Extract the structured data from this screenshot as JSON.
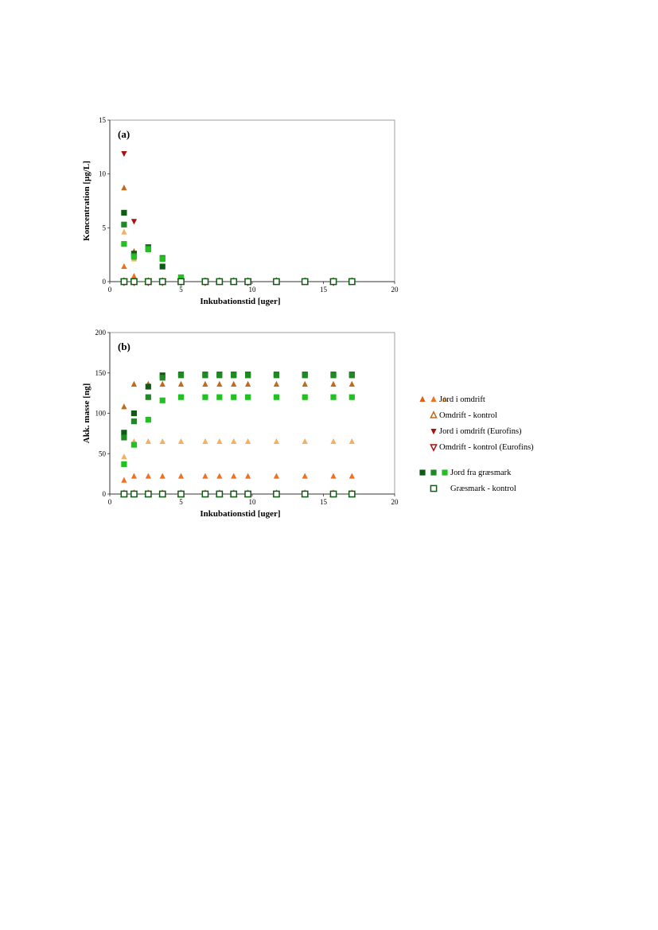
{
  "chart_data": [
    {
      "type": "scatter",
      "panel_label": "(a)",
      "xlabel": "Inkubationstid [uger]",
      "ylabel": "Koncentration [µg/L]",
      "xlim": [
        0,
        20
      ],
      "ylim": [
        0,
        15
      ],
      "xticks": [
        "0",
        "5",
        "10",
        "15",
        "20"
      ],
      "yticks": [
        "0",
        "5",
        "10",
        "15"
      ],
      "series": [
        {
          "name": "Jord i omdrift",
          "marker": "triangle-up",
          "color": "#f07020",
          "filled": true,
          "x": [
            1,
            1.7,
            2.7,
            3.7,
            5,
            6.7,
            7.7,
            8.7,
            9.7,
            11.7,
            13.7,
            15.7,
            17
          ],
          "y": [
            1.4,
            0.5,
            0,
            0,
            0,
            0,
            0,
            0,
            0,
            0,
            0,
            0,
            0
          ]
        },
        {
          "name": "Jord i omdrift",
          "marker": "triangle-up",
          "color": "#c06a1a",
          "filled": true,
          "x": [
            1,
            1.7,
            2.7,
            3.7,
            5,
            6.7,
            7.7,
            8.7,
            9.7,
            11.7,
            13.7,
            15.7,
            17
          ],
          "y": [
            8.7,
            2.8,
            0,
            0,
            0,
            0,
            0,
            0,
            0,
            0,
            0,
            0,
            0
          ]
        },
        {
          "name": "Jord i omdrift",
          "marker": "triangle-up",
          "color": "#f4b060",
          "filled": true,
          "x": [
            1,
            1.7,
            2.7,
            3.7,
            5,
            6.7,
            7.7,
            8.7,
            9.7,
            11.7,
            13.7,
            15.7,
            17
          ],
          "y": [
            4.6,
            2.1,
            0,
            0,
            0,
            0,
            0,
            0,
            0,
            0,
            0,
            0,
            0
          ]
        },
        {
          "name": "Omdrift - kontrol",
          "marker": "triangle-up",
          "color": "#c06a1a",
          "filled": false,
          "x": [
            1,
            1.7,
            2.7,
            3.7,
            5,
            6.7,
            7.7,
            8.7,
            9.7,
            11.7,
            13.7,
            15.7,
            17
          ],
          "y": [
            0,
            0,
            0,
            0,
            0,
            0,
            0,
            0,
            0,
            0,
            0,
            0,
            0
          ]
        },
        {
          "name": "Jord i omdrift (Eurofins)",
          "marker": "triangle-down",
          "color": "#aa1010",
          "filled": true,
          "x": [
            1,
            1.7,
            2.7,
            3.7,
            5,
            6.7,
            9.7,
            15.7
          ],
          "y": [
            11.9,
            5.6,
            0,
            0,
            0,
            0,
            0,
            0
          ]
        },
        {
          "name": "Omdrift - kontrol (Eurofins)",
          "marker": "triangle-down",
          "color": "#aa1010",
          "filled": false,
          "x": [
            1,
            1.7,
            2.7,
            3.7,
            5,
            6.7,
            9.7,
            15.7
          ],
          "y": [
            0,
            0,
            0,
            0,
            0,
            0,
            0,
            0
          ]
        },
        {
          "name": "Jord fra græsmark",
          "marker": "square",
          "color": "#0f5a14",
          "filled": true,
          "x": [
            1,
            1.7,
            2.7,
            3.7,
            5,
            6.7,
            7.7,
            8.7,
            9.7,
            11.7,
            13.7,
            15.7,
            17
          ],
          "y": [
            6.4,
            2.6,
            3.2,
            1.4,
            0.3,
            0,
            0,
            0,
            0,
            0,
            0,
            0,
            0
          ]
        },
        {
          "name": "Jord fra græsmark",
          "marker": "square",
          "color": "#1f8a23",
          "filled": true,
          "x": [
            1,
            1.7,
            2.7,
            3.7,
            5,
            6.7,
            7.7,
            8.7,
            9.7,
            11.7,
            13.7,
            15.7,
            17
          ],
          "y": [
            5.3,
            2.4,
            3.1,
            2.2,
            0.4,
            0,
            0,
            0,
            0,
            0,
            0,
            0,
            0
          ]
        },
        {
          "name": "Jord fra græsmark",
          "marker": "square",
          "color": "#22c022",
          "filled": true,
          "x": [
            1,
            1.7,
            2.7,
            3.7,
            5,
            6.7,
            7.7,
            8.7,
            9.7,
            11.7,
            13.7,
            15.7,
            17
          ],
          "y": [
            3.5,
            2.3,
            3.0,
            2.1,
            0.4,
            0,
            0,
            0,
            0,
            0,
            0,
            0,
            0
          ]
        },
        {
          "name": "Græsmark - kontrol",
          "marker": "square",
          "color": "#0f5a14",
          "filled": false,
          "x": [
            1,
            1.7,
            2.7,
            3.7,
            5,
            6.7,
            7.7,
            8.7,
            9.7,
            11.7,
            13.7,
            15.7,
            17
          ],
          "y": [
            0,
            0,
            0,
            0,
            0,
            0,
            0,
            0,
            0,
            0,
            0,
            0,
            0
          ]
        }
      ]
    },
    {
      "type": "scatter",
      "panel_label": "(b)",
      "xlabel": "Inkubationstid [uger]",
      "ylabel": "Akk. masse [ng]",
      "xlim": [
        0,
        20
      ],
      "ylim": [
        0,
        200
      ],
      "xticks": [
        "0",
        "5",
        "10",
        "15",
        "20"
      ],
      "yticks": [
        "0",
        "50",
        "100",
        "150",
        "200"
      ],
      "series": [
        {
          "name": "Jord i omdrift",
          "marker": "triangle-up",
          "color": "#f07020",
          "filled": true,
          "x": [
            1,
            1.7,
            2.7,
            3.7,
            5,
            6.7,
            7.7,
            8.7,
            9.7,
            11.7,
            13.7,
            15.7,
            17
          ],
          "y": [
            17,
            22,
            22,
            22,
            22,
            22,
            22,
            22,
            22,
            22,
            22,
            22,
            22
          ]
        },
        {
          "name": "Jord i omdrift",
          "marker": "triangle-up",
          "color": "#c06a1a",
          "filled": true,
          "x": [
            1,
            1.7,
            2.7,
            3.7,
            5,
            6.7,
            7.7,
            8.7,
            9.7,
            11.7,
            13.7,
            15.7,
            17
          ],
          "y": [
            108,
            136,
            136,
            136,
            136,
            136,
            136,
            136,
            136,
            136,
            136,
            136,
            136
          ]
        },
        {
          "name": "Jord i omdrift",
          "marker": "triangle-up",
          "color": "#f4b060",
          "filled": true,
          "x": [
            1,
            1.7,
            2.7,
            3.7,
            5,
            6.7,
            7.7,
            8.7,
            9.7,
            11.7,
            13.7,
            15.7,
            17
          ],
          "y": [
            46,
            65,
            65,
            65,
            65,
            65,
            65,
            65,
            65,
            65,
            65,
            65,
            65
          ]
        },
        {
          "name": "Omdrift - kontrol",
          "marker": "triangle-up",
          "color": "#c06a1a",
          "filled": false,
          "x": [
            1,
            1.7,
            2.7,
            3.7,
            5,
            6.7,
            7.7,
            8.7,
            9.7,
            11.7,
            13.7,
            15.7,
            17
          ],
          "y": [
            0,
            0,
            0,
            0,
            0,
            0,
            0,
            0,
            0,
            0,
            0,
            0,
            0
          ]
        },
        {
          "name": "Jord fra græsmark",
          "marker": "square",
          "color": "#0f5a14",
          "filled": true,
          "x": [
            1,
            1.7,
            2.7,
            3.7,
            5,
            6.7,
            7.7,
            8.7,
            9.7,
            11.7,
            13.7,
            15.7,
            17
          ],
          "y": [
            76,
            100,
            133,
            147,
            148,
            148,
            148,
            148,
            148,
            148,
            148,
            148,
            148
          ]
        },
        {
          "name": "Jord fra græsmark",
          "marker": "square",
          "color": "#1f8a23",
          "filled": true,
          "x": [
            1,
            1.7,
            2.7,
            3.7,
            5,
            6.7,
            7.7,
            8.7,
            9.7,
            11.7,
            13.7,
            15.7,
            17
          ],
          "y": [
            70,
            90,
            120,
            144,
            147,
            147,
            147,
            147,
            147,
            147,
            147,
            147,
            147
          ]
        },
        {
          "name": "Jord fra græsmark",
          "marker": "square",
          "color": "#22c022",
          "filled": true,
          "x": [
            1,
            1.7,
            2.7,
            3.7,
            5,
            6.7,
            7.7,
            8.7,
            9.7,
            11.7,
            13.7,
            15.7,
            17
          ],
          "y": [
            37,
            61,
            92,
            116,
            120,
            120,
            120,
            120,
            120,
            120,
            120,
            120,
            120
          ]
        },
        {
          "name": "Græsmark - kontrol",
          "marker": "square",
          "color": "#0f5a14",
          "filled": false,
          "x": [
            1,
            1.7,
            2.7,
            3.7,
            5,
            6.7,
            7.7,
            8.7,
            9.7,
            11.7,
            13.7,
            15.7,
            17
          ],
          "y": [
            0,
            0,
            0,
            0,
            0,
            0,
            0,
            0,
            0,
            0,
            0,
            0,
            0
          ]
        }
      ]
    }
  ],
  "legend": {
    "placement": "right of panel (b)",
    "entries": [
      {
        "label": "Jord i omdrift",
        "marker": "triangle-up",
        "filled": true,
        "colors": [
          "#e06010",
          "#f07020",
          "#f4b060"
        ]
      },
      {
        "label": "Omdrift - kontrol",
        "marker": "triangle-up",
        "filled": false,
        "colors": [
          "#c06a1a"
        ]
      },
      {
        "label": "Jord i omdrift (Eurofins)",
        "marker": "triangle-down",
        "filled": true,
        "colors": [
          "#aa1010"
        ]
      },
      {
        "label": "Omdrift - kontrol (Eurofins)",
        "marker": "triangle-down",
        "filled": false,
        "colors": [
          "#aa1010"
        ]
      },
      {
        "label": "Jord fra græsmark",
        "marker": "square",
        "filled": true,
        "colors": [
          "#0f5a14",
          "#1f8a23",
          "#22c022"
        ]
      },
      {
        "label": "Græsmark - kontrol",
        "marker": "square",
        "filled": false,
        "colors": [
          "#0f5a14"
        ]
      }
    ]
  }
}
